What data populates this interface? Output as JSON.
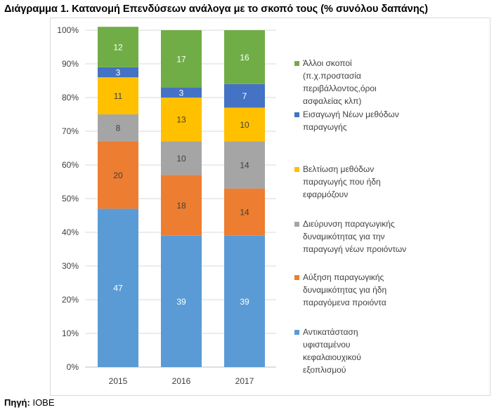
{
  "title": "Διάγραμμα 1. Κατανομή Επενδύσεων ανάλογα με το σκοπό τους (% συνόλου δαπάνης)",
  "source": {
    "label": "Πηγή:",
    "value": " ΙΟΒΕ"
  },
  "chart_data": {
    "type": "bar",
    "stacked": true,
    "percent": true,
    "categories": [
      "2015",
      "2016",
      "2017"
    ],
    "ylim": [
      0,
      100
    ],
    "yticks": [
      "0%",
      "10%",
      "20%",
      "30%",
      "40%",
      "50%",
      "60%",
      "70%",
      "80%",
      "90%",
      "100%"
    ],
    "grid": true,
    "legend_position": "right",
    "series": [
      {
        "name": "Αντικατάσταση υφισταμένου κεφαλαιουχικού εξοπλισμού",
        "legend_lines": [
          "Αντικατάσταση",
          "υφισταμένου",
          "κεφαλαιουχικού",
          "εξοπλισμού"
        ],
        "color": "#5b9bd5",
        "values": [
          47,
          39,
          39
        ]
      },
      {
        "name": "Αύξηση παραγωγικής δυναμικότητας για ήδη παραγόμενα προιόντα",
        "legend_lines": [
          "Αύξηση παραγωγικής",
          "δυναμικότητας για ήδη",
          "παραγόμενα προιόντα"
        ],
        "color": "#ed7d31",
        "values": [
          20,
          18,
          14
        ]
      },
      {
        "name": "Διεύρυνση παραγωγικής δυναμικότητας για την παραγωγή νέων προιόντων",
        "legend_lines": [
          "Διεύρυνση παραγωγικής",
          "δυναμικότητας για την",
          "παραγωγή νέων προιόντων"
        ],
        "color": "#a5a5a5",
        "values": [
          8,
          10,
          14
        ]
      },
      {
        "name": "Βελτίωση μεθόδων παραγωγής που ήδη εφαρμόζουν",
        "legend_lines": [
          "Βελτίωση μεθόδων",
          "παραγωγής που ήδη",
          "εφαρμόζουν"
        ],
        "color": "#ffc000",
        "values": [
          11,
          13,
          10
        ]
      },
      {
        "name": "Εισαγωγή Νέων μεθόδων παραγωγής",
        "legend_lines": [
          "Εισαγωγή  Νέων μεθόδων",
          "παραγωγής"
        ],
        "color": "#4472c4",
        "values": [
          3,
          3,
          7
        ]
      },
      {
        "name": "Άλλοι σκοποί (π.χ.προστασία περιβάλλοντος,όροι ασφαλείας κλπ)",
        "legend_lines": [
          "Άλλοι σκοποί",
          "(π.χ.προστασία",
          "περιβάλλοντος,όροι",
          "ασφαλείας κλπ)"
        ],
        "color": "#70ad47",
        "values": [
          12,
          17,
          16
        ]
      }
    ]
  }
}
